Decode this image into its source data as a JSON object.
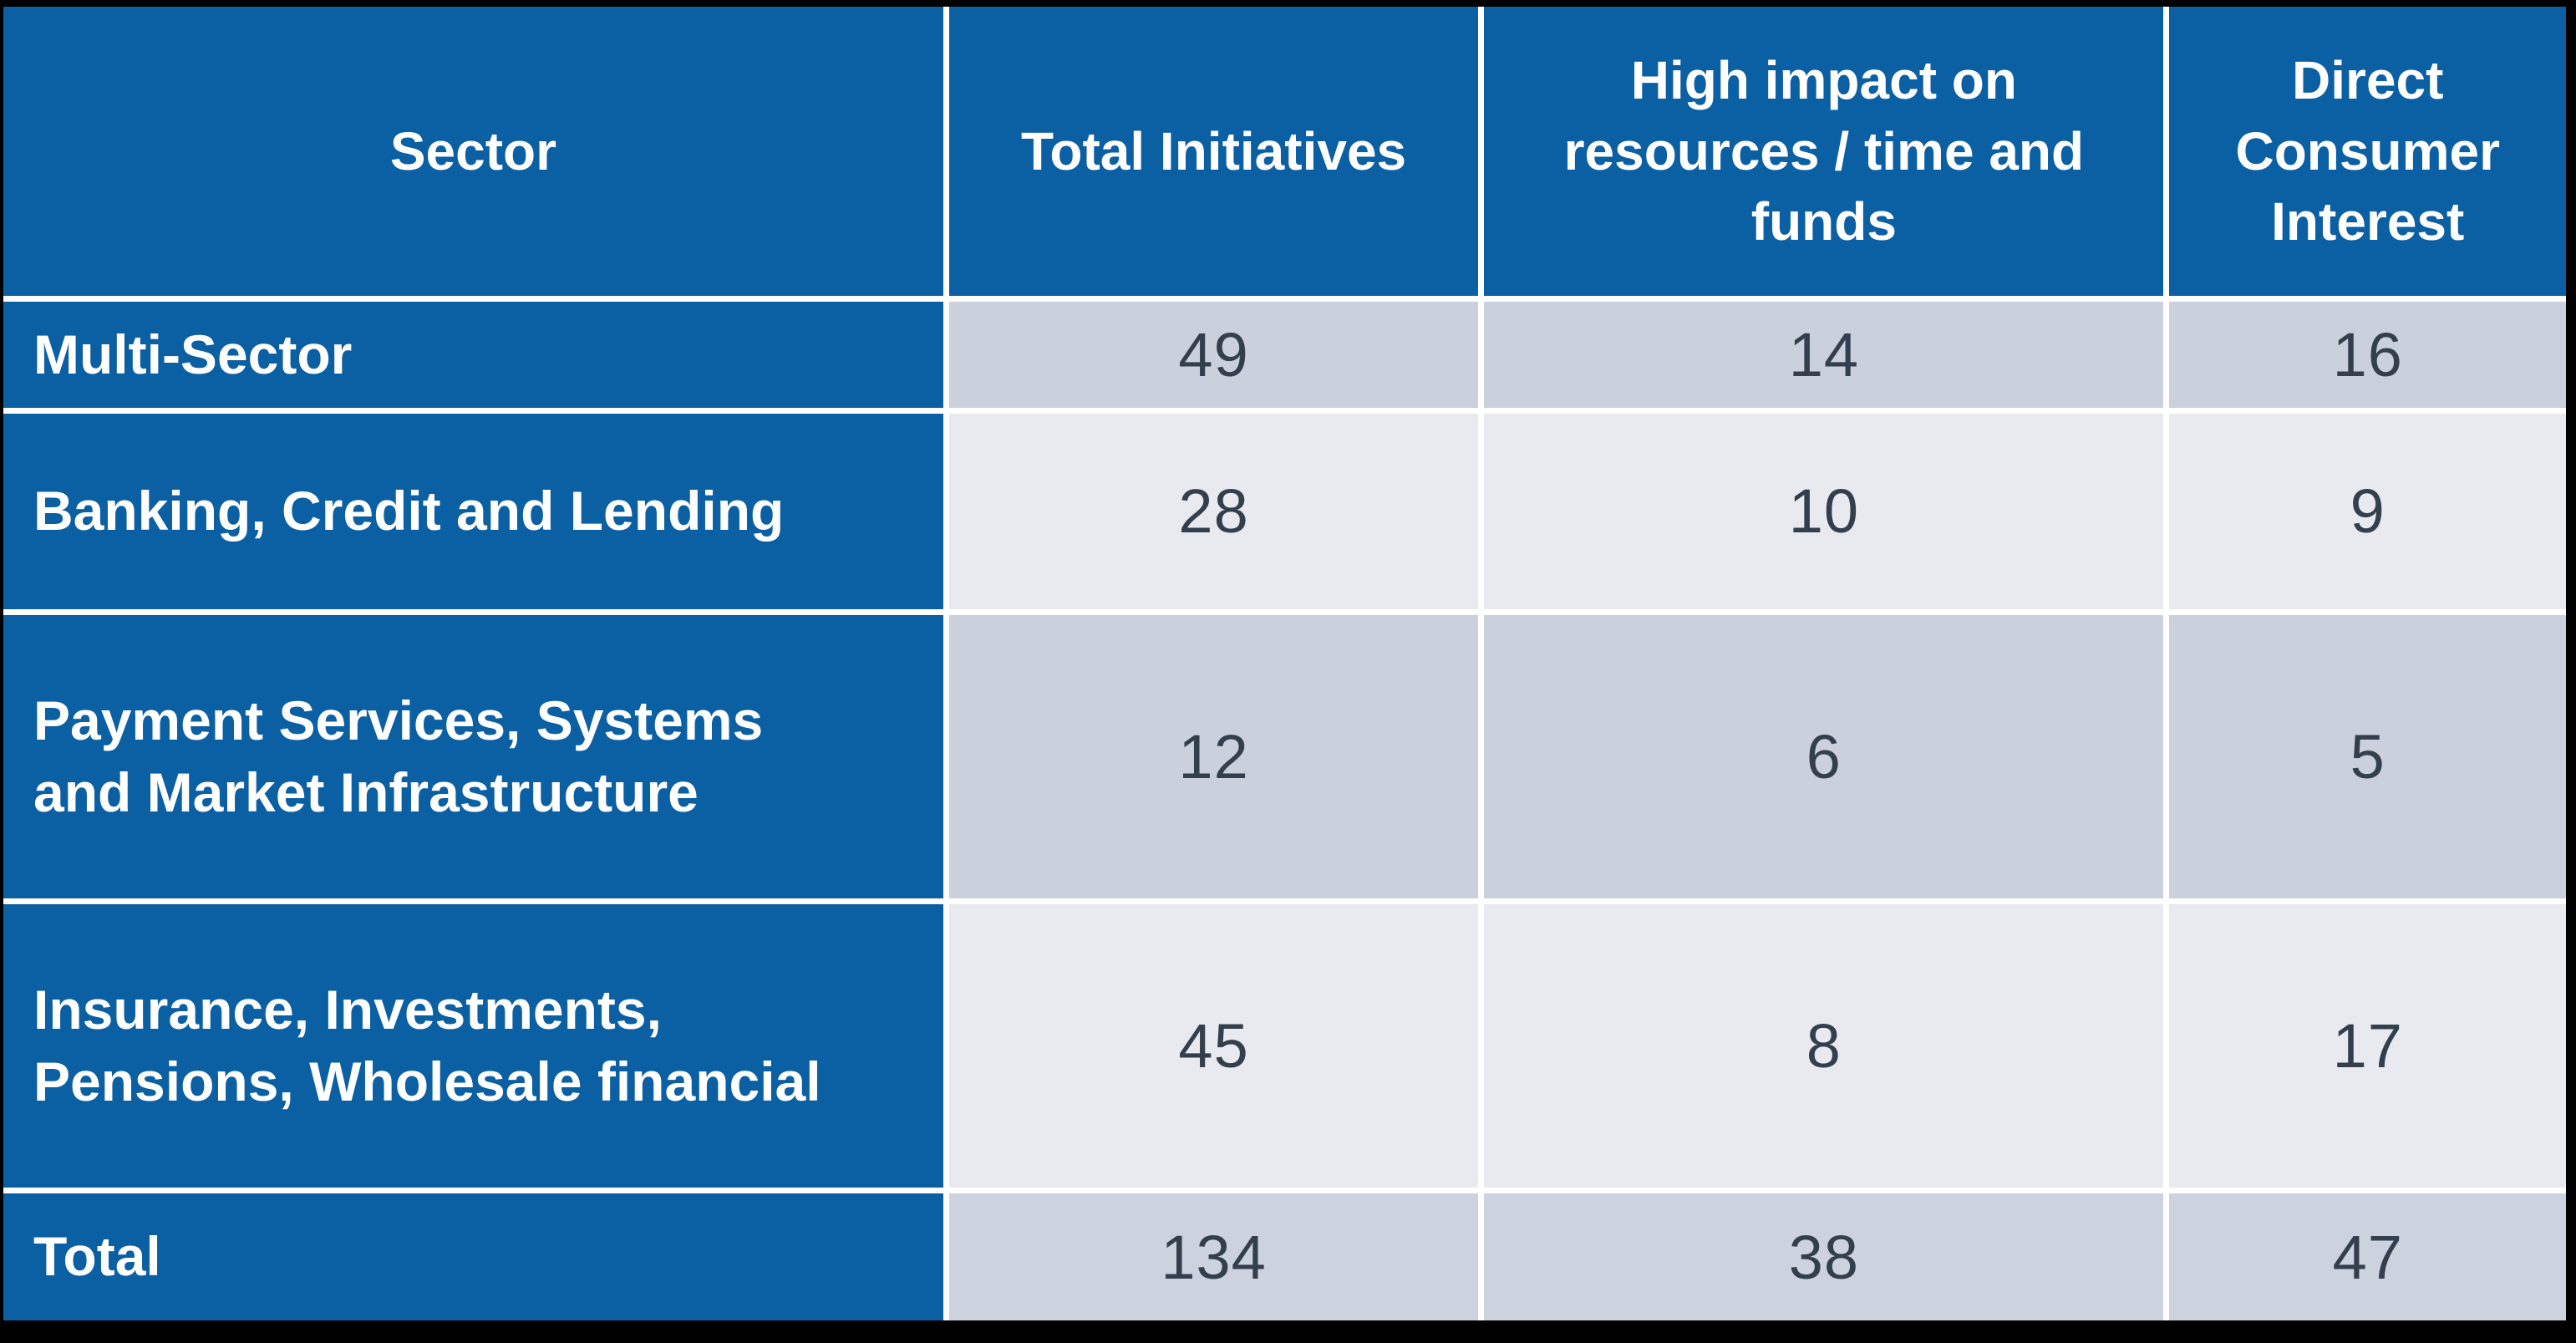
{
  "table": {
    "header": [
      "Sector",
      "Total Initiatives",
      "High impact on resources / time and funds",
      "Direct Consumer Interest"
    ],
    "rows": [
      {
        "sector": "Multi-Sector",
        "values": [
          "49",
          "14",
          "16"
        ]
      },
      {
        "sector": "Banking, Credit and Lending",
        "values": [
          "28",
          "10",
          "9"
        ]
      },
      {
        "sector": "Payment Services, Systems and Market Infrastructure",
        "values": [
          "12",
          "6",
          "5"
        ]
      },
      {
        "sector": "Insurance, Investments, Pensions, Wholesale financial",
        "values": [
          "45",
          "8",
          "17"
        ]
      },
      {
        "sector": "Total",
        "values": [
          "134",
          "38",
          "47"
        ]
      }
    ]
  },
  "chart_data": {
    "type": "table",
    "title": "",
    "columns": [
      "Sector",
      "Total Initiatives",
      "High impact on resources / time and funds",
      "Direct Consumer Interest"
    ],
    "rows": [
      [
        "Multi-Sector",
        49,
        14,
        16
      ],
      [
        "Banking, Credit and Lending",
        28,
        10,
        9
      ],
      [
        "Payment Services, Systems and Market Infrastructure",
        12,
        6,
        5
      ],
      [
        "Insurance, Investments, Pensions, Wholesale financial",
        45,
        8,
        17
      ],
      [
        "Total",
        134,
        38,
        47
      ]
    ],
    "layout_hints": {
      "header_style": "blue banner, white bold text",
      "first_column_style": "blue banner, white bold text",
      "row_striping": [
        "dark",
        "light",
        "dark",
        "light",
        "dark"
      ]
    }
  },
  "colors": {
    "header_blue": "#0B5FA3",
    "row_shade_dark": "#CAD0DC",
    "row_shade_light": "#E8EAEF",
    "total_row_shade": "#CDD3DE",
    "number_text": "#333F4D",
    "separator_white": "#FFFFFF",
    "outer_frame_black": "#000000"
  }
}
